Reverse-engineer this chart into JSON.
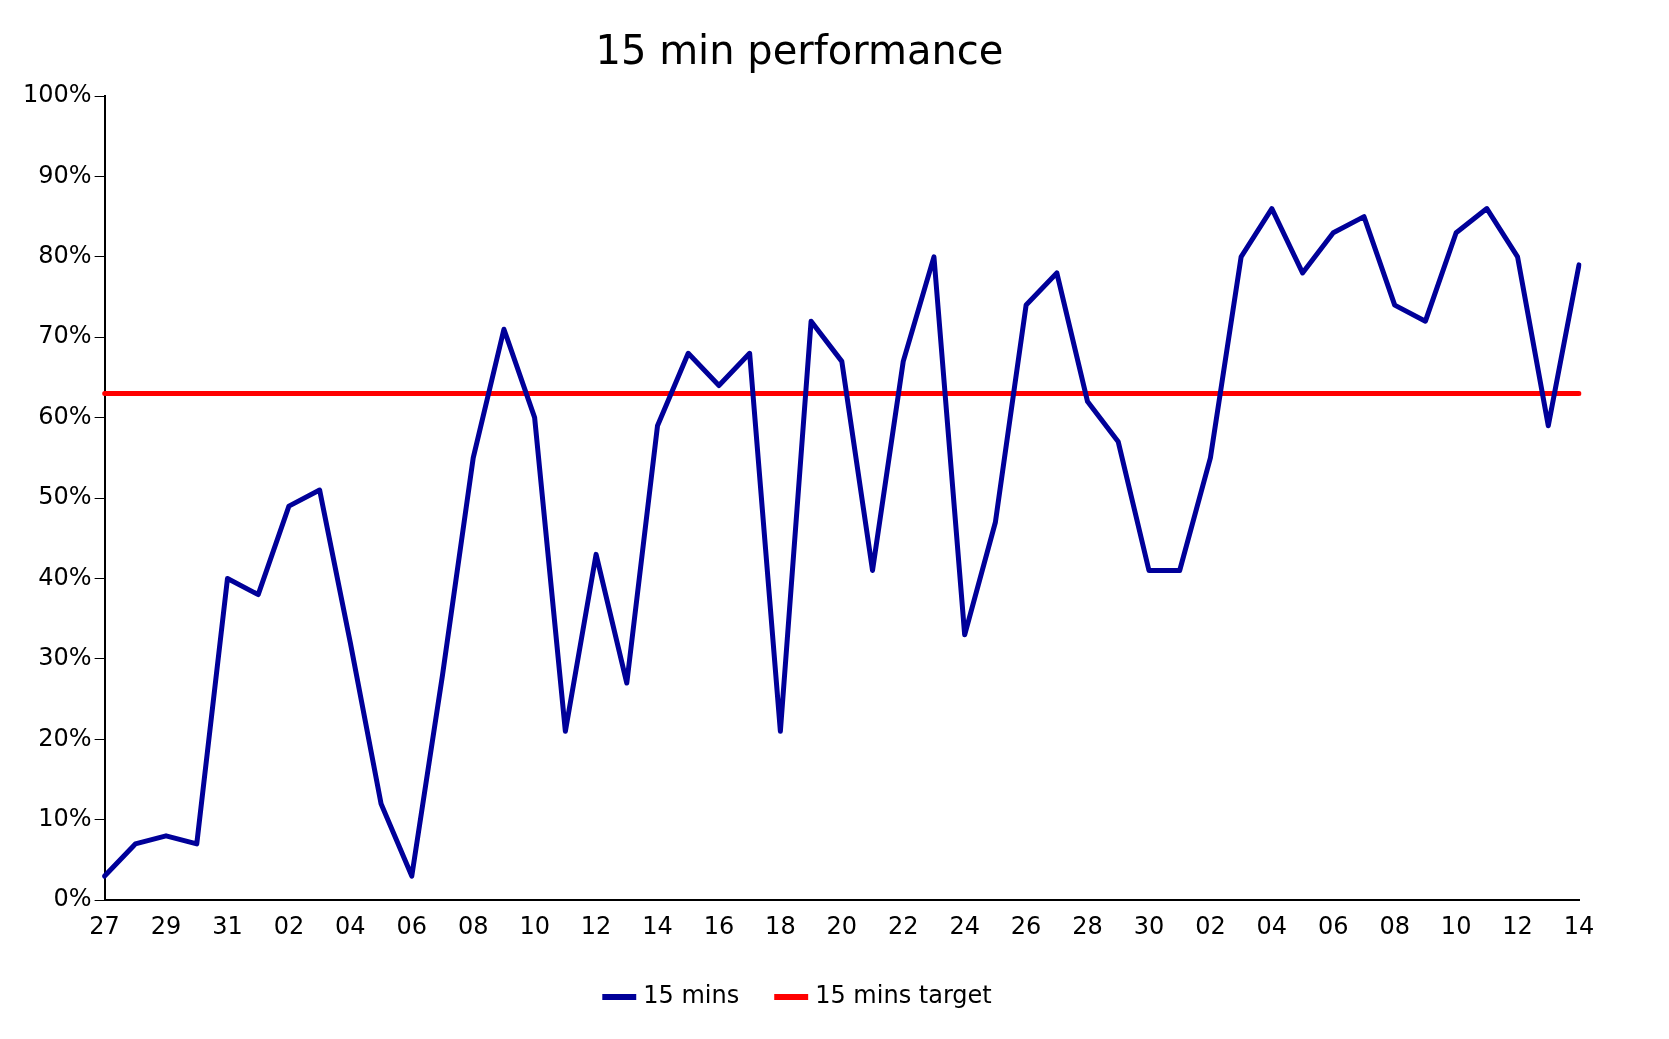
{
  "chart_data": {
    "type": "line",
    "title": "15 min performance",
    "categories": [
      "27",
      null,
      "29",
      null,
      "31",
      null,
      "02",
      null,
      "04",
      null,
      "06",
      null,
      "08",
      null,
      "10",
      null,
      "12",
      null,
      "14",
      null,
      "16",
      null,
      "18",
      null,
      "20",
      null,
      "22",
      null,
      "24",
      null,
      "26",
      null,
      "28",
      null,
      "30",
      null,
      "02",
      null,
      "04",
      null,
      "06",
      null,
      "08",
      null,
      "10",
      null,
      "12",
      null,
      "14"
    ],
    "series": [
      {
        "name": "15 mins",
        "color": "#000099",
        "values": [
          3,
          7,
          8,
          7,
          40,
          38,
          49,
          51,
          32,
          12,
          3,
          28,
          55,
          71,
          60,
          21,
          43,
          27,
          59,
          68,
          64,
          68,
          21,
          72,
          67,
          41,
          67,
          80,
          33,
          47,
          74,
          78,
          62,
          57,
          41,
          41,
          55,
          80,
          86,
          78,
          83,
          85,
          74,
          72,
          83,
          86,
          80,
          59,
          79
        ]
      },
      {
        "name": "15 mins target",
        "color": "#ff0000",
        "values": [
          63,
          63,
          63,
          63,
          63,
          63,
          63,
          63,
          63,
          63,
          63,
          63,
          63,
          63,
          63,
          63,
          63,
          63,
          63,
          63,
          63,
          63,
          63,
          63,
          63,
          63,
          63,
          63,
          63,
          63,
          63,
          63,
          63,
          63,
          63,
          63,
          63,
          63,
          63,
          63,
          63,
          63,
          63,
          63,
          63,
          63,
          63,
          63,
          63
        ]
      }
    ],
    "ylim": [
      0,
      100
    ],
    "yticks": [
      {
        "value": 0,
        "label": "0%"
      },
      {
        "value": 10,
        "label": "10%"
      },
      {
        "value": 20,
        "label": "20%"
      },
      {
        "value": 30,
        "label": "30%"
      },
      {
        "value": 40,
        "label": "40%"
      },
      {
        "value": 50,
        "label": "50%"
      },
      {
        "value": 60,
        "label": "60%"
      },
      {
        "value": 70,
        "label": "70%"
      },
      {
        "value": 80,
        "label": "80%"
      },
      {
        "value": 90,
        "label": "90%"
      },
      {
        "value": 100,
        "label": "100%"
      }
    ],
    "grid": false,
    "legend": "bottom",
    "marker": "none",
    "line_style": "solid"
  }
}
